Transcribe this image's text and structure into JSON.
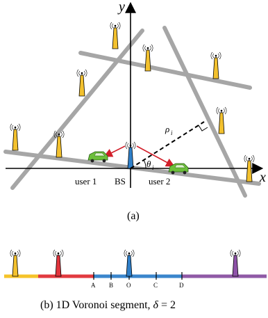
{
  "axes": {
    "x_label": "x",
    "y_label": "y"
  },
  "labels": {
    "user1": "user 1",
    "bs": "BS",
    "user2": "user 2",
    "rho": "ρ",
    "rho_sub": "i",
    "theta": "θ",
    "theta_sub": "i"
  },
  "captions": {
    "top": "(a)",
    "bottom_prefix": "(b) 1D Voronoi segment, ",
    "bottom_delta": "δ",
    "bottom_suffix": " = 2"
  },
  "segment_points": [
    "A",
    "B",
    "O",
    "C",
    "D"
  ],
  "colors": {
    "line_gray": "#a6a6a6",
    "tower_yellow": "#f3c12e",
    "tower_red": "#e2343c",
    "tower_blue": "#2f7fc8",
    "tower_purple": "#8e52a8",
    "car_green": "#6cbf3a",
    "arrow_red": "#d21f2a",
    "seg_yellow": "#f5c32a",
    "seg_red": "#e23a3f",
    "seg_blue": "#3a86cc",
    "seg_purple": "#8f5aa6"
  },
  "icons": [
    "cell-tower-icon",
    "car-icon"
  ]
}
